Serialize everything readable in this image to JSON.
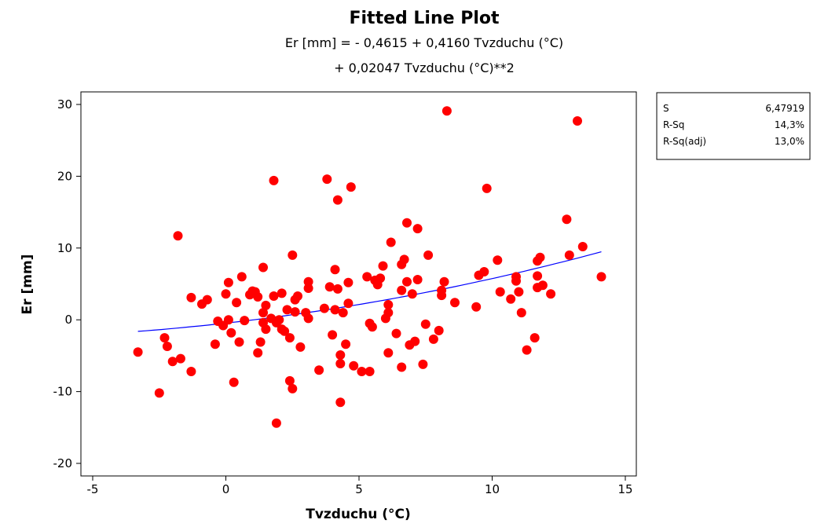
{
  "chart_data": {
    "type": "scatter",
    "title": "Fitted Line Plot",
    "subtitle_lines": [
      "Er [mm] =  - 0,4615 + 0,4160 Tvzduchu (°C)",
      "+ 0,02047 Tvzduchu (°C)**2"
    ],
    "xlabel": "Tvzduchu (°C)",
    "ylabel": "Er [mm]",
    "xlim": [
      -5,
      15
    ],
    "ylim": [
      -20,
      30
    ],
    "x_ticks": [
      -5,
      0,
      5,
      10,
      15
    ],
    "y_ticks": [
      -20,
      -10,
      0,
      10,
      20,
      30
    ],
    "grid": false,
    "marker_color": "#ff0000",
    "fit_color": "#0000ff",
    "fit": {
      "intercept": -0.4615,
      "b1": 0.416,
      "b2": 0.02047,
      "x_range": [
        -3.3,
        14.1
      ]
    },
    "stats": [
      {
        "label": "S",
        "value": "6,47919"
      },
      {
        "label": "R-Sq",
        "value": "14,3%"
      },
      {
        "label": "R-Sq(adj)",
        "value": "13,0%"
      }
    ],
    "points": [
      {
        "x": -3.3,
        "y": -4.5
      },
      {
        "x": -2.5,
        "y": -10.2
      },
      {
        "x": -2.3,
        "y": -2.5
      },
      {
        "x": -2.2,
        "y": -3.7
      },
      {
        "x": -2.0,
        "y": -5.8
      },
      {
        "x": -1.8,
        "y": 11.7
      },
      {
        "x": -1.7,
        "y": -5.4
      },
      {
        "x": -1.3,
        "y": 3.1
      },
      {
        "x": -1.3,
        "y": -7.2
      },
      {
        "x": -0.9,
        "y": 2.2
      },
      {
        "x": -0.7,
        "y": 2.8
      },
      {
        "x": -0.4,
        "y": -3.4
      },
      {
        "x": -0.3,
        "y": -0.2
      },
      {
        "x": -0.1,
        "y": -0.8
      },
      {
        "x": 0.0,
        "y": 3.6
      },
      {
        "x": 0.1,
        "y": 5.2
      },
      {
        "x": 0.1,
        "y": 0.0
      },
      {
        "x": 0.2,
        "y": -1.8
      },
      {
        "x": 0.3,
        "y": -8.7
      },
      {
        "x": 0.4,
        "y": 2.4
      },
      {
        "x": 0.5,
        "y": -3.1
      },
      {
        "x": 0.6,
        "y": 6.0
      },
      {
        "x": 0.7,
        "y": -0.1
      },
      {
        "x": 0.9,
        "y": 3.5
      },
      {
        "x": 1.0,
        "y": 4.0
      },
      {
        "x": 1.1,
        "y": 3.9
      },
      {
        "x": 1.2,
        "y": 3.2
      },
      {
        "x": 1.2,
        "y": -4.6
      },
      {
        "x": 1.3,
        "y": -3.1
      },
      {
        "x": 1.4,
        "y": 7.3
      },
      {
        "x": 1.4,
        "y": -0.4
      },
      {
        "x": 1.4,
        "y": 1.0
      },
      {
        "x": 1.5,
        "y": -1.3
      },
      {
        "x": 1.5,
        "y": 2.0
      },
      {
        "x": 1.7,
        "y": 0.2
      },
      {
        "x": 1.8,
        "y": 19.4
      },
      {
        "x": 1.8,
        "y": 3.3
      },
      {
        "x": 1.9,
        "y": -14.4
      },
      {
        "x": 1.9,
        "y": -0.4
      },
      {
        "x": 2.0,
        "y": 0.0
      },
      {
        "x": 2.1,
        "y": -1.3
      },
      {
        "x": 2.1,
        "y": 3.7
      },
      {
        "x": 2.2,
        "y": -1.6
      },
      {
        "x": 2.3,
        "y": 1.4
      },
      {
        "x": 2.4,
        "y": -2.5
      },
      {
        "x": 2.4,
        "y": -8.5
      },
      {
        "x": 2.5,
        "y": -9.6
      },
      {
        "x": 2.5,
        "y": 9.0
      },
      {
        "x": 2.6,
        "y": 1.1
      },
      {
        "x": 2.6,
        "y": 2.8
      },
      {
        "x": 2.7,
        "y": 3.3
      },
      {
        "x": 2.8,
        "y": -3.8
      },
      {
        "x": 3.0,
        "y": 1.0
      },
      {
        "x": 3.1,
        "y": 0.2
      },
      {
        "x": 3.1,
        "y": 4.4
      },
      {
        "x": 3.1,
        "y": 5.3
      },
      {
        "x": 3.5,
        "y": -7.0
      },
      {
        "x": 3.7,
        "y": 1.6
      },
      {
        "x": 3.8,
        "y": 19.6
      },
      {
        "x": 3.9,
        "y": 4.6
      },
      {
        "x": 4.0,
        "y": -2.1
      },
      {
        "x": 4.1,
        "y": 1.4
      },
      {
        "x": 4.1,
        "y": 7.0
      },
      {
        "x": 4.2,
        "y": 16.7
      },
      {
        "x": 4.2,
        "y": 4.3
      },
      {
        "x": 4.3,
        "y": -6.1
      },
      {
        "x": 4.3,
        "y": -11.5
      },
      {
        "x": 4.3,
        "y": -4.9
      },
      {
        "x": 4.4,
        "y": 1.0
      },
      {
        "x": 4.5,
        "y": -3.4
      },
      {
        "x": 4.6,
        "y": 2.3
      },
      {
        "x": 4.6,
        "y": 5.2
      },
      {
        "x": 4.7,
        "y": 18.5
      },
      {
        "x": 4.8,
        "y": -6.4
      },
      {
        "x": 5.1,
        "y": -7.2
      },
      {
        "x": 5.3,
        "y": 6.0
      },
      {
        "x": 5.4,
        "y": -0.5
      },
      {
        "x": 5.4,
        "y": -7.2
      },
      {
        "x": 5.5,
        "y": -1.0
      },
      {
        "x": 5.6,
        "y": 5.5
      },
      {
        "x": 5.7,
        "y": 4.9
      },
      {
        "x": 5.8,
        "y": 5.8
      },
      {
        "x": 5.9,
        "y": 7.5
      },
      {
        "x": 6.0,
        "y": 0.2
      },
      {
        "x": 6.1,
        "y": -4.6
      },
      {
        "x": 6.1,
        "y": 1.0
      },
      {
        "x": 6.1,
        "y": 2.1
      },
      {
        "x": 6.2,
        "y": 10.8
      },
      {
        "x": 6.4,
        "y": -1.9
      },
      {
        "x": 6.6,
        "y": -6.6
      },
      {
        "x": 6.6,
        "y": 4.1
      },
      {
        "x": 6.6,
        "y": 7.7
      },
      {
        "x": 6.7,
        "y": 8.4
      },
      {
        "x": 6.8,
        "y": 13.5
      },
      {
        "x": 6.8,
        "y": 5.3
      },
      {
        "x": 6.9,
        "y": -3.5
      },
      {
        "x": 7.0,
        "y": 3.6
      },
      {
        "x": 7.1,
        "y": -3.0
      },
      {
        "x": 7.2,
        "y": 12.7
      },
      {
        "x": 7.2,
        "y": 5.6
      },
      {
        "x": 7.4,
        "y": -6.2
      },
      {
        "x": 7.5,
        "y": -0.6
      },
      {
        "x": 7.6,
        "y": 9.0
      },
      {
        "x": 7.8,
        "y": -2.7
      },
      {
        "x": 8.0,
        "y": -1.5
      },
      {
        "x": 8.1,
        "y": 3.4
      },
      {
        "x": 8.1,
        "y": 4.1
      },
      {
        "x": 8.2,
        "y": 5.3
      },
      {
        "x": 8.3,
        "y": 29.1
      },
      {
        "x": 8.6,
        "y": 2.4
      },
      {
        "x": 9.4,
        "y": 1.8
      },
      {
        "x": 9.5,
        "y": 6.2
      },
      {
        "x": 9.7,
        "y": 6.7
      },
      {
        "x": 9.8,
        "y": 18.3
      },
      {
        "x": 10.2,
        "y": 8.3
      },
      {
        "x": 10.3,
        "y": 3.9
      },
      {
        "x": 10.7,
        "y": 2.9
      },
      {
        "x": 10.9,
        "y": 5.4
      },
      {
        "x": 10.9,
        "y": 6.0
      },
      {
        "x": 11.0,
        "y": 3.9
      },
      {
        "x": 11.1,
        "y": 1.0
      },
      {
        "x": 11.3,
        "y": -4.2
      },
      {
        "x": 11.6,
        "y": -2.5
      },
      {
        "x": 11.7,
        "y": 8.2
      },
      {
        "x": 11.7,
        "y": 6.1
      },
      {
        "x": 11.7,
        "y": 4.5
      },
      {
        "x": 11.8,
        "y": 8.7
      },
      {
        "x": 11.9,
        "y": 4.8
      },
      {
        "x": 12.2,
        "y": 3.6
      },
      {
        "x": 12.8,
        "y": 14.0
      },
      {
        "x": 12.9,
        "y": 9.0
      },
      {
        "x": 13.2,
        "y": 27.7
      },
      {
        "x": 13.4,
        "y": 10.2
      },
      {
        "x": 14.1,
        "y": 6.0
      }
    ]
  }
}
